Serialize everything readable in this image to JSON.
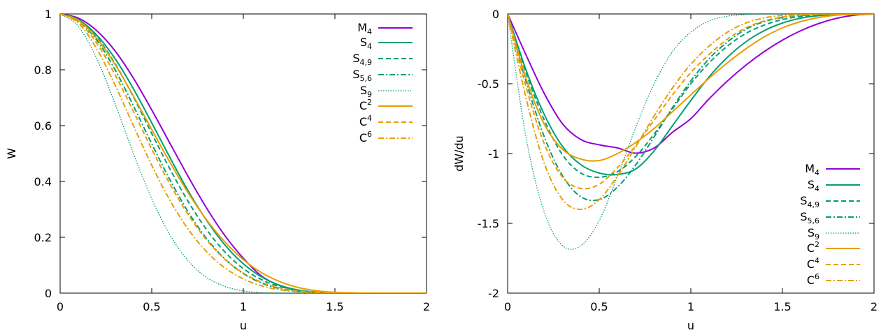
{
  "colors": {
    "purple": "#9400d3",
    "green": "#009e73",
    "orange": "#e69f00"
  },
  "chart_data": [
    {
      "type": "line",
      "xlabel": "u",
      "ylabel": "W",
      "xlim": [
        0,
        2
      ],
      "ylim": [
        0,
        1
      ],
      "xticks": [
        0,
        0.5,
        1,
        1.5,
        2
      ],
      "xtick_labels": [
        "0",
        "0.5",
        "1",
        "1.5",
        "2"
      ],
      "yticks": [
        0,
        0.2,
        0.4,
        0.6,
        0.8,
        1
      ],
      "ytick_labels": [
        "0",
        "0.2",
        "0.4",
        "0.6",
        "0.8",
        "1"
      ],
      "legend_position": "top-right",
      "x": [
        0,
        0.1,
        0.2,
        0.3,
        0.4,
        0.5,
        0.6,
        0.7,
        0.8,
        0.9,
        1.0,
        1.1,
        1.2,
        1.3,
        1.4,
        1.5,
        1.6,
        1.7,
        1.8,
        1.9,
        2.0
      ],
      "series": [
        {
          "name": "M4",
          "base": "M",
          "sub": "4",
          "sup": "",
          "color": "purple",
          "dash": "solid",
          "values": [
            1,
            0.985,
            0.94,
            0.8675,
            0.77,
            0.65625,
            0.536,
            0.4165,
            0.304,
            0.2055,
            0.125,
            0.06075,
            0.027,
            0.00925,
            0.0015,
            0.00025,
            0,
            0,
            0,
            0,
            0
          ]
        },
        {
          "name": "S4",
          "base": "S",
          "sub": "4",
          "sup": "",
          "color": "green",
          "dash": "solid",
          "values": [
            1,
            0.98,
            0.924,
            0.84,
            0.732,
            0.61,
            0.485,
            0.365,
            0.26,
            0.172,
            0.105,
            0.058,
            0.028,
            0.011,
            0.0035,
            0.0008,
            0.0001,
            0,
            0,
            0,
            0
          ]
        },
        {
          "name": "S4,9",
          "base": "S",
          "sub": "4,9",
          "sup": "",
          "color": "green",
          "dash": "dashed",
          "values": [
            1,
            0.979,
            0.917,
            0.822,
            0.703,
            0.572,
            0.444,
            0.327,
            0.227,
            0.147,
            0.088,
            0.048,
            0.023,
            0.009,
            0.003,
            0.0006,
            0.0001,
            0,
            0,
            0,
            0
          ]
        },
        {
          "name": "S5,6",
          "base": "S",
          "sub": "5,6",
          "sup": "",
          "color": "green",
          "dash": "dashdot",
          "values": [
            1,
            0.976,
            0.906,
            0.8,
            0.671,
            0.535,
            0.405,
            0.29,
            0.195,
            0.122,
            0.07,
            0.036,
            0.016,
            0.006,
            0.0018,
            0.0004,
            0,
            0,
            0,
            0,
            0
          ]
        },
        {
          "name": "S9",
          "base": "S",
          "sub": "9",
          "sup": "",
          "color": "green",
          "dash": "dotted",
          "values": [
            1,
            0.955,
            0.84,
            0.678,
            0.5,
            0.338,
            0.208,
            0.115,
            0.056,
            0.024,
            0.008,
            0.002,
            0.0004,
            0,
            0,
            0,
            0,
            0,
            0,
            0,
            0
          ]
        },
        {
          "name": "C2",
          "base": "C",
          "sub": "",
          "sup": "2",
          "color": "orange",
          "dash": "solid",
          "values": [
            1,
            0.977,
            0.913,
            0.819,
            0.706,
            0.586,
            0.468,
            0.358,
            0.262,
            0.183,
            0.12,
            0.073,
            0.041,
            0.02,
            0.0085,
            0.003,
            0.0008,
            0.00015,
            0,
            0,
            0
          ]
        },
        {
          "name": "C4",
          "base": "C",
          "sub": "",
          "sup": "4",
          "color": "orange",
          "dash": "dashed",
          "values": [
            1,
            0.972,
            0.895,
            0.782,
            0.651,
            0.516,
            0.39,
            0.28,
            0.19,
            0.121,
            0.072,
            0.039,
            0.019,
            0.008,
            0.003,
            0.0008,
            0.0002,
            0,
            0,
            0,
            0
          ]
        },
        {
          "name": "C6",
          "base": "C",
          "sub": "",
          "sup": "6",
          "color": "orange",
          "dash": "dashdot",
          "values": [
            1,
            0.967,
            0.875,
            0.745,
            0.6,
            0.458,
            0.332,
            0.228,
            0.148,
            0.09,
            0.051,
            0.026,
            0.012,
            0.005,
            0.0016,
            0.0004,
            0,
            0,
            0,
            0,
            0
          ]
        }
      ]
    },
    {
      "type": "line",
      "xlabel": "u",
      "ylabel": "dW/du",
      "xlim": [
        0,
        2
      ],
      "ylim": [
        -2,
        0
      ],
      "xticks": [
        0,
        0.5,
        1,
        1.5,
        2
      ],
      "xtick_labels": [
        "0",
        "0.5",
        "1",
        "1.5",
        "2"
      ],
      "yticks": [
        -2,
        -1.5,
        -1,
        -0.5,
        0
      ],
      "ytick_labels": [
        "-2",
        "-1.5",
        "-1",
        "-0.5",
        "0"
      ],
      "legend_position": "bottom-right",
      "x": [
        0,
        0.1,
        0.2,
        0.3,
        0.4,
        0.5,
        0.6,
        0.7,
        0.8,
        0.9,
        1.0,
        1.1,
        1.2,
        1.3,
        1.4,
        1.5,
        1.6,
        1.7,
        1.8,
        1.9,
        2.0
      ],
      "series": [
        {
          "name": "M4",
          "base": "M",
          "sub": "4",
          "sup": "",
          "color": "purple",
          "dash": "solid",
          "values": [
            0,
            -0.2925,
            -0.57,
            -0.7875,
            -0.9,
            -0.9375,
            -0.96,
            -0.9975,
            -0.96,
            -0.8475,
            -0.75,
            -0.6075,
            -0.48,
            -0.3675,
            -0.27,
            -0.1875,
            -0.12,
            -0.0675,
            -0.03,
            -0.0075,
            0
          ]
        },
        {
          "name": "S4",
          "base": "S",
          "sub": "4",
          "sup": "",
          "color": "green",
          "dash": "solid",
          "values": [
            0,
            -0.4,
            -0.72,
            -0.95,
            -1.08,
            -1.14,
            -1.15,
            -1.11,
            -0.98,
            -0.8,
            -0.62,
            -0.45,
            -0.31,
            -0.2,
            -0.12,
            -0.065,
            -0.03,
            -0.012,
            -0.004,
            -0.001,
            0
          ]
        },
        {
          "name": "S4,9",
          "base": "S",
          "sub": "4,9",
          "sup": "",
          "color": "green",
          "dash": "dashed",
          "values": [
            0,
            -0.42,
            -0.76,
            -1.01,
            -1.14,
            -1.17,
            -1.13,
            -1.02,
            -0.86,
            -0.68,
            -0.5,
            -0.35,
            -0.23,
            -0.14,
            -0.08,
            -0.04,
            -0.018,
            -0.007,
            -0.002,
            -0.0005,
            0
          ]
        },
        {
          "name": "S5,6",
          "base": "S",
          "sub": "5,6",
          "sup": "",
          "color": "green",
          "dash": "dashdot",
          "values": [
            0,
            -0.48,
            -0.88,
            -1.16,
            -1.31,
            -1.33,
            -1.24,
            -1.08,
            -0.88,
            -0.67,
            -0.48,
            -0.32,
            -0.2,
            -0.11,
            -0.055,
            -0.025,
            -0.01,
            -0.003,
            -0.001,
            0,
            0
          ]
        },
        {
          "name": "S9",
          "base": "S",
          "sub": "9",
          "sup": "",
          "color": "green",
          "dash": "dotted",
          "values": [
            0,
            -0.88,
            -1.42,
            -1.66,
            -1.66,
            -1.48,
            -1.16,
            -0.81,
            -0.5,
            -0.27,
            -0.13,
            -0.05,
            -0.016,
            -0.004,
            -0.001,
            0,
            0,
            0,
            0,
            0,
            0
          ]
        },
        {
          "name": "C2",
          "base": "C",
          "sub": "",
          "sup": "2",
          "color": "orange",
          "dash": "solid",
          "values": [
            0,
            -0.46,
            -0.79,
            -0.97,
            -1.04,
            -1.05,
            -1.0,
            -0.92,
            -0.82,
            -0.7,
            -0.58,
            -0.46,
            -0.35,
            -0.25,
            -0.165,
            -0.1,
            -0.055,
            -0.025,
            -0.008,
            -0.002,
            0
          ]
        },
        {
          "name": "C4",
          "base": "C",
          "sub": "",
          "sup": "4",
          "color": "orange",
          "dash": "dashed",
          "values": [
            0,
            -0.52,
            -0.93,
            -1.17,
            -1.25,
            -1.22,
            -1.1,
            -0.94,
            -0.76,
            -0.58,
            -0.42,
            -0.29,
            -0.18,
            -0.1,
            -0.05,
            -0.022,
            -0.008,
            -0.002,
            -0.0005,
            0,
            0
          ]
        },
        {
          "name": "C6",
          "base": "C",
          "sub": "",
          "sup": "6",
          "color": "orange",
          "dash": "dashdot",
          "values": [
            0,
            -0.6,
            -1.07,
            -1.33,
            -1.4,
            -1.33,
            -1.16,
            -0.95,
            -0.73,
            -0.53,
            -0.36,
            -0.23,
            -0.13,
            -0.065,
            -0.028,
            -0.01,
            -0.003,
            -0.0008,
            0,
            0,
            0
          ]
        }
      ]
    }
  ]
}
